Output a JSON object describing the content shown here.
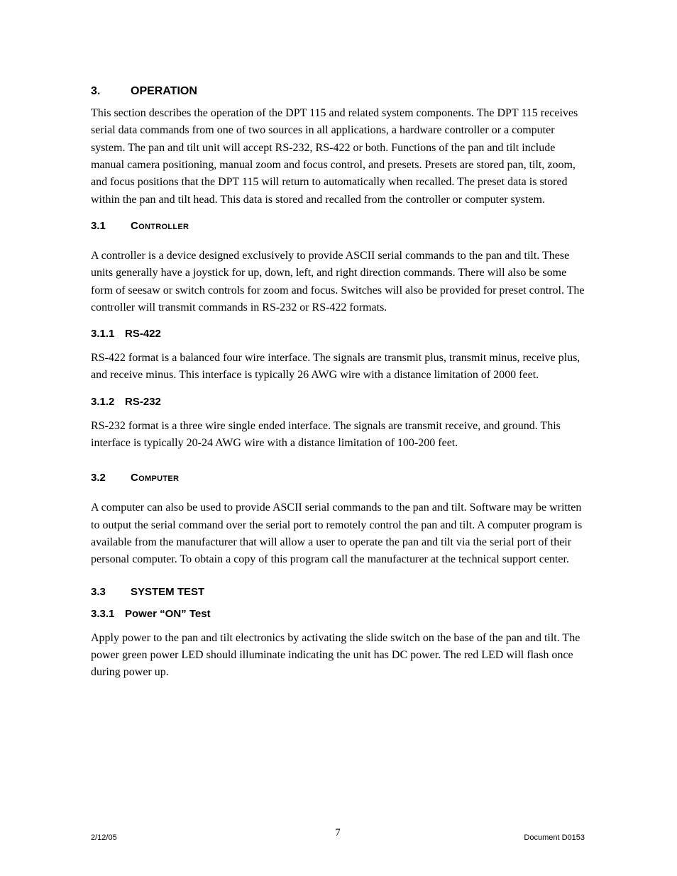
{
  "sections": {
    "s3": {
      "num": "3.",
      "title": "OPERATION"
    },
    "s3_1": {
      "num": "3.1",
      "title": "Controller"
    },
    "s3_1_1": {
      "num": "3.1.1",
      "title": "RS-422"
    },
    "s3_1_2": {
      "num": "3.1.2",
      "title": "RS-232"
    },
    "s3_2": {
      "num": "3.2",
      "title": "Computer"
    },
    "s3_3": {
      "num": "3.3",
      "title": "SYSTEM TEST"
    },
    "s3_3_1": {
      "num": "3.3.1",
      "title": "Power “ON” Test"
    }
  },
  "paras": {
    "p3": "This section describes the operation of the DPT 115 and related system components. The DPT 115 receives serial data commands from one of two sources in all applications, a hardware controller or a computer system. The pan and tilt unit will accept RS-232, RS-422 or both. Functions of the pan and tilt include manual camera positioning, manual zoom and focus control, and presets. Presets are stored pan, tilt, zoom, and focus positions that the DPT 115 will return to automatically when recalled. The preset data is stored within the pan and tilt head. This data is stored and recalled from the controller or computer system.",
    "p3_1": "A controller is a device designed exclusively to provide ASCII serial commands to the pan and tilt. These units generally have a joystick for up, down, left, and right direction commands. There will also be some form of seesaw or switch controls for zoom and focus. Switches will also be provided for preset control. The controller will transmit commands in RS-232 or RS-422 formats.",
    "p3_1_1": "RS-422 format is a balanced four wire interface. The signals are transmit plus, transmit minus, receive plus, and receive minus. This interface is typically 26 AWG wire with a distance limitation of 2000 feet.",
    "p3_1_2": "RS-232 format is a three wire single ended interface. The signals are transmit receive, and ground. This interface is typically 20-24 AWG wire with a distance limitation of 100-200 feet.",
    "p3_2": "A computer can also be used to provide ASCII serial commands to the pan and tilt. Software may be written to output the serial command over the serial port to remotely control the pan and tilt. A computer program is available from the manufacturer that will allow a user to operate the pan and tilt via the serial port of their personal computer. To obtain a copy of this program call the manufacturer at the technical support center.",
    "p3_3_1": "Apply power to the pan and tilt electronics by activating the slide switch on the base of the pan and tilt. The power green power LED should illuminate indicating the unit has DC power. The red LED will flash once during power up."
  },
  "footer": {
    "date": "2/12/05",
    "page": "7",
    "doc": "Document D0153"
  }
}
